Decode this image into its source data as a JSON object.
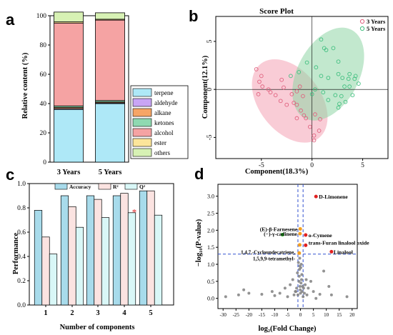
{
  "panels": [
    "a",
    "b",
    "c",
    "d"
  ],
  "chart_data": [
    {
      "panel": "a",
      "type": "bar",
      "stacked": true,
      "categories": [
        "3 Years",
        "5 Years"
      ],
      "ylabel": "Relative content (%)",
      "ylim": [
        0,
        100
      ],
      "yticks": [
        0,
        20,
        40,
        60,
        80,
        100
      ],
      "series": [
        {
          "name": "terpene",
          "color": "#aee8f7",
          "values": [
            36,
            40
          ]
        },
        {
          "name": "aldehyde",
          "color": "#c9a5f5",
          "values": [
            0.6,
            0.5
          ]
        },
        {
          "name": "alkane",
          "color": "#f6a566",
          "values": [
            0.8,
            0.6
          ]
        },
        {
          "name": "ketones",
          "color": "#8fd9b1",
          "values": [
            1.0,
            1.0
          ]
        },
        {
          "name": "alcohol",
          "color": "#f5a3a3",
          "values": [
            56.6,
            54.9
          ]
        },
        {
          "name": "ester",
          "color": "#fce59a",
          "values": [
            0.8,
            0.6
          ]
        },
        {
          "name": "others",
          "color": "#d7f1b4",
          "values": [
            6.7,
            4.4
          ]
        }
      ],
      "legend_position": "right"
    },
    {
      "panel": "b",
      "type": "scatter",
      "title": "Score Plot",
      "xlabel": "Component(18.3%)",
      "ylabel": "Component(12.1%)",
      "xlim": [
        -9.5,
        7.5
      ],
      "ylim": [
        -7.2,
        7.6
      ],
      "xticks": [
        -5,
        0,
        5
      ],
      "yticks": [
        -5,
        0,
        5
      ],
      "series": [
        {
          "name": "3 Years",
          "color": "#e0607e",
          "points": [
            [
              -5.5,
              2.1
            ],
            [
              -5.0,
              1.4
            ],
            [
              -5.2,
              0.8
            ],
            [
              -4.9,
              0.3
            ],
            [
              -4.3,
              0.0
            ],
            [
              -5.3,
              -0.5
            ],
            [
              -4.1,
              -0.3
            ],
            [
              -3.6,
              -0.6
            ],
            [
              -3.1,
              -1.2
            ],
            [
              -2.5,
              -1.6
            ],
            [
              -1.5,
              -1.6
            ],
            [
              -0.9,
              -0.7
            ],
            [
              -1.8,
              -1.4
            ],
            [
              -3.0,
              1.0
            ],
            [
              -1.5,
              -0.2
            ],
            [
              -2.0,
              -0.5
            ],
            [
              -1.1,
              -2.2
            ],
            [
              -0.6,
              -3.0
            ],
            [
              0.3,
              -2.6
            ],
            [
              -0.8,
              -2.7
            ],
            [
              0.2,
              -4.8
            ],
            [
              0.2,
              -5.3
            ],
            [
              0.7,
              -4.3
            ],
            [
              -1.5,
              -3.0
            ],
            [
              -0.2,
              -3.9
            ],
            [
              0.8,
              -3.1
            ],
            [
              -2.8,
              0.2
            ],
            [
              -1.2,
              0.3
            ]
          ]
        },
        {
          "name": "5 Years",
          "color": "#3fbf7f",
          "points": [
            [
              0.9,
              5.2
            ],
            [
              1.2,
              4.3
            ],
            [
              1.4,
              4.1
            ],
            [
              2.1,
              4.3
            ],
            [
              -0.5,
              2.8
            ],
            [
              0.4,
              2.3
            ],
            [
              -1.3,
              1.8
            ],
            [
              -2.1,
              1.4
            ],
            [
              0.9,
              1.4
            ],
            [
              1.6,
              1.2
            ],
            [
              2.6,
              2.9
            ],
            [
              2.6,
              1.6
            ],
            [
              3.0,
              1.2
            ],
            [
              3.2,
              0.3
            ],
            [
              3.7,
              1.6
            ],
            [
              4.3,
              1.4
            ],
            [
              4.2,
              1.1
            ],
            [
              3.6,
              1.1
            ],
            [
              4.6,
              0.6
            ],
            [
              3.7,
              0.3
            ],
            [
              4.0,
              -0.6
            ],
            [
              3.3,
              -1.3
            ],
            [
              2.7,
              -1.5
            ],
            [
              2.6,
              -1.9
            ],
            [
              2.9,
              -0.7
            ],
            [
              1.6,
              -1.1
            ],
            [
              0.3,
              0.0
            ],
            [
              0.0,
              -0.5
            ],
            [
              1.1,
              -0.3
            ],
            [
              2.3,
              -0.6
            ]
          ]
        }
      ],
      "legend_position": "top-right"
    },
    {
      "panel": "c",
      "type": "bar",
      "categories": [
        "1",
        "2",
        "3",
        "4",
        "5"
      ],
      "xlabel": "Number of components",
      "ylabel": "Performance",
      "ylim": [
        0,
        1.0
      ],
      "yticks": [
        0.0,
        0.2,
        0.4,
        0.6,
        0.8,
        1.0
      ],
      "series": [
        {
          "name": "Accuracy",
          "color": "#a8dbeb",
          "values": [
            0.78,
            0.9,
            0.9,
            0.9,
            0.94
          ]
        },
        {
          "name": "R²",
          "color": "#fbe3e1",
          "values": [
            0.56,
            0.81,
            0.87,
            0.92,
            0.94
          ]
        },
        {
          "name": "Q²",
          "color": "#d9f7f7",
          "values": [
            0.42,
            0.64,
            0.72,
            0.76,
            0.74
          ]
        }
      ],
      "annotations": [
        {
          "text": "*",
          "category": "4",
          "y": 0.78,
          "color": "#e02020"
        }
      ],
      "legend_position": "top"
    },
    {
      "panel": "d",
      "type": "scatter",
      "xlabel": "log₂(Fold Change)",
      "ylabel": "−log₁₀(P-value)",
      "xlim": [
        -32,
        22
      ],
      "ylim": [
        -0.3,
        3.35
      ],
      "xticks": [
        -30,
        -25,
        -20,
        -15,
        -10,
        -5,
        0,
        5,
        10,
        15,
        20
      ],
      "yticks": [
        0.0,
        0.5,
        1.0,
        1.5,
        2.0,
        2.5,
        3.0
      ],
      "thresholds": {
        "y": 1.3,
        "x": [
          -1,
          1
        ]
      },
      "labels": [
        {
          "text": "D-Limonene",
          "x": 6.0,
          "y": 2.99
        },
        {
          "text": "(E)-β-Farnesene",
          "x": -0.1,
          "y": 2.04
        },
        {
          "text": "(−)-γ-cadinene",
          "x": -0.2,
          "y": 1.9
        },
        {
          "text": "o-Cymene",
          "x": 2.0,
          "y": 1.86
        },
        {
          "text": "trans-Furan linalool oxide",
          "x": 2.0,
          "y": 1.56
        },
        {
          "text": "Linalool",
          "x": 12.0,
          "y": 1.37
        },
        {
          "text": "1,4,7,-Cycloundecatriene,",
          "x": -1.0,
          "y": 1.37
        },
        {
          "text": "1,5,9,9-tetramethyl-",
          "x": -1.0,
          "y": 1.18
        }
      ],
      "series": [
        {
          "name": "up",
          "color": "#e02020",
          "points": [
            [
              6.0,
              2.99
            ],
            [
              2.0,
              1.86
            ],
            [
              2.0,
              1.56
            ],
            [
              12.0,
              1.37
            ]
          ]
        },
        {
          "name": "down",
          "color": "#2bb52b",
          "points": [
            [
              -7.0,
              1.87
            ]
          ]
        },
        {
          "name": "highlight",
          "color": "#f5a020",
          "points": [
            [
              -0.1,
              2.04
            ],
            [
              -0.2,
              1.9
            ],
            [
              -0.3,
              1.57
            ],
            [
              -0.5,
              1.33
            ]
          ]
        },
        {
          "name": "ns",
          "color": "#808080",
          "points": [
            [
              -29,
              0.05
            ],
            [
              -24,
              0.1
            ],
            [
              -22,
              0.25
            ],
            [
              -20,
              0.15
            ],
            [
              -15,
              0.12
            ],
            [
              -11,
              0.2
            ],
            [
              -10,
              0.08
            ],
            [
              -8,
              0.15
            ],
            [
              -6,
              0.3
            ],
            [
              -5,
              0.05
            ],
            [
              -4,
              0.4
            ],
            [
              -3,
              0.55
            ],
            [
              -2,
              0.2
            ],
            [
              -1.5,
              0.3
            ],
            [
              -1.2,
              0.75
            ],
            [
              -1,
              0.1
            ],
            [
              -0.8,
              1.05
            ],
            [
              -0.6,
              0.5
            ],
            [
              -0.5,
              0.65
            ],
            [
              -0.4,
              0.85
            ],
            [
              -0.3,
              0.95
            ],
            [
              -0.2,
              0.35
            ],
            [
              -0.1,
              0.25
            ],
            [
              0,
              0.15
            ],
            [
              0.2,
              0.45
            ],
            [
              0.4,
              0.55
            ],
            [
              0.6,
              0.2
            ],
            [
              0.8,
              0.35
            ],
            [
              1.0,
              0.05
            ],
            [
              1.2,
              0.3
            ],
            [
              1.5,
              0.15
            ],
            [
              1.8,
              0.4
            ],
            [
              2.2,
              0.55
            ],
            [
              2.5,
              0.1
            ],
            [
              3.0,
              0.3
            ],
            [
              4.0,
              0.5
            ],
            [
              5.0,
              0.2
            ],
            [
              6.0,
              0.0
            ],
            [
              7.5,
              0.12
            ],
            [
              9.0,
              0.8
            ],
            [
              11.0,
              0.35
            ],
            [
              12.0,
              0.1
            ],
            [
              18.0,
              0.05
            ],
            [
              -0.3,
              1.18
            ],
            [
              0.3,
              1.0
            ],
            [
              0.1,
              0.9
            ],
            [
              -1.8,
              0.2
            ],
            [
              -2.5,
              0.1
            ],
            [
              0.5,
              0.7
            ]
          ]
        }
      ]
    }
  ]
}
